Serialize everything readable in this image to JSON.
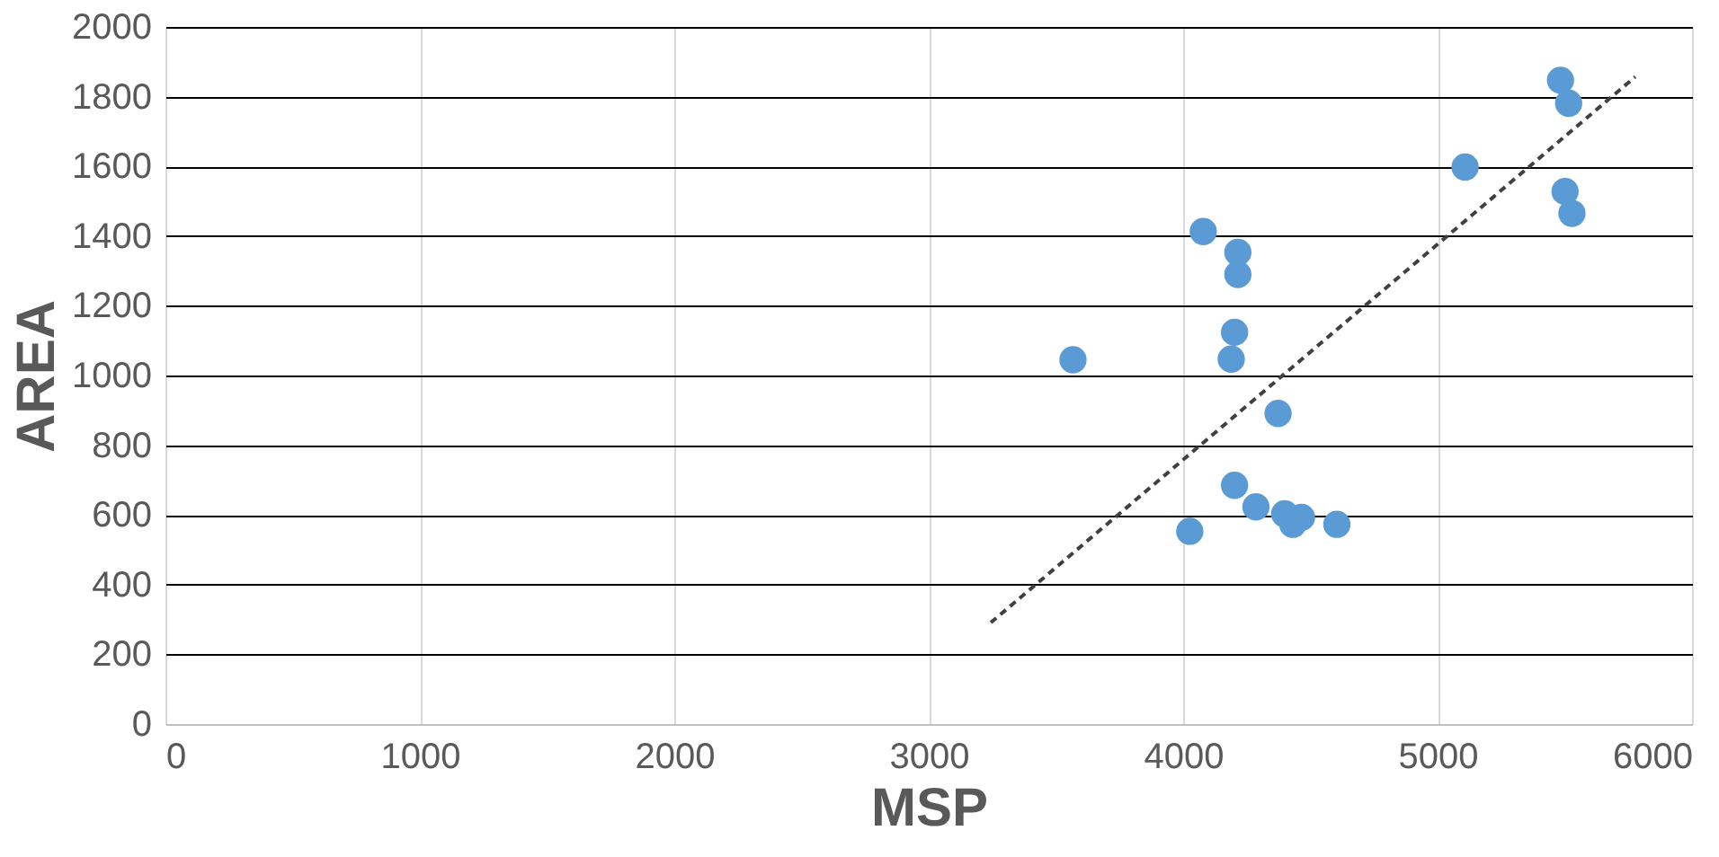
{
  "chart_data": {
    "type": "scatter",
    "xlabel": "MSP",
    "ylabel": "AREA",
    "xlim": [
      0,
      6000
    ],
    "xticks": [
      0,
      1000,
      2000,
      3000,
      4000,
      5000,
      6000
    ],
    "ylim": [
      0,
      2000
    ],
    "yticks": [
      0,
      200,
      400,
      600,
      800,
      1000,
      1200,
      1400,
      1600,
      1800,
      2000
    ],
    "grid": true,
    "series": [
      {
        "marker": "circle",
        "color": "#5b9bd5",
        "x": [
          4079,
          4215,
          4215,
          4202,
          4189,
          3567,
          4373,
          4202,
          4286,
          4399,
          4465,
          4431,
          4026,
          4604,
          5483,
          5515,
          5108,
          5501,
          5528
        ],
        "values": [
          1413,
          1353,
          1290,
          1124,
          1047,
          1045,
          891,
          685,
          623,
          603,
          593,
          573,
          553,
          573,
          1847,
          1781,
          1598,
          1528,
          1465
        ]
      },
      {
        "type": "line",
        "color": "#404040",
        "line_style": "dashed",
        "x": [
          3244,
          5777
        ],
        "values": [
          291,
          1857
        ]
      }
    ]
  }
}
